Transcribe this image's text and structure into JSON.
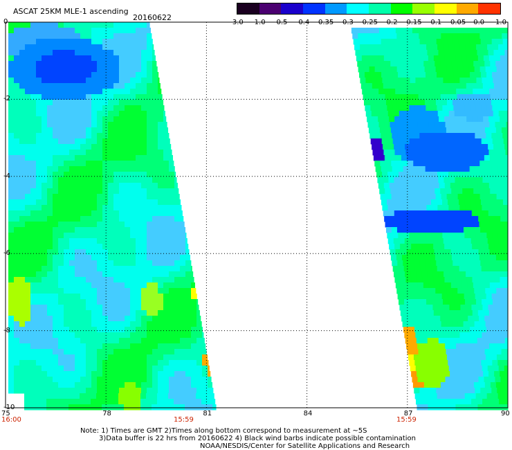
{
  "header": {
    "title": "ASCAT 25KM MLE-1 ascending",
    "date": "20160622"
  },
  "colorbar": {
    "labels": [
      "-3.0",
      "-1.0",
      "-0.5",
      "-0.4",
      "-0.35",
      "-0.3",
      "-0.25",
      "-0.2",
      "-0.15",
      "-0.1",
      "-0.05",
      "0.0",
      "1.0"
    ],
    "colors": [
      "#1a0020",
      "#4a0070",
      "#1a00cc",
      "#0033ff",
      "#0099ff",
      "#00ffff",
      "#00ffaa",
      "#00ff00",
      "#99ff00",
      "#ffff00",
      "#ffaa00",
      "#ff3300"
    ]
  },
  "map": {
    "x_ticks": [
      "75",
      "78",
      "81",
      "84",
      "87",
      "90"
    ],
    "y_ticks": [
      "0",
      "-2",
      "-4",
      "-6",
      "-8",
      "-10"
    ],
    "left_start_time": "16:00",
    "left_end_time": "15:59",
    "right_end_time": "15:59",
    "lon_range": [
      75,
      90
    ],
    "lat_range": [
      -10,
      0
    ],
    "swaths": [
      {
        "name": "west",
        "lon_west": 75,
        "lon_east_top": 79.3,
        "lon_east_bottom": 81.3
      },
      {
        "name": "east",
        "lon_west_top": 85.3,
        "lon_west_bottom": 87.3,
        "lon_east": 90
      }
    ]
  },
  "footer": {
    "line1": "Note: 1) Times are GMT  2)Times along bottom correspond to measurement at ~5S",
    "line2": "3)Data buffer is 22 hrs from 20160622 4) Black wind barbs indicate possible contamination",
    "line3": "NOAA/NESDIS/Center for Satellite Applications and Research"
  }
}
